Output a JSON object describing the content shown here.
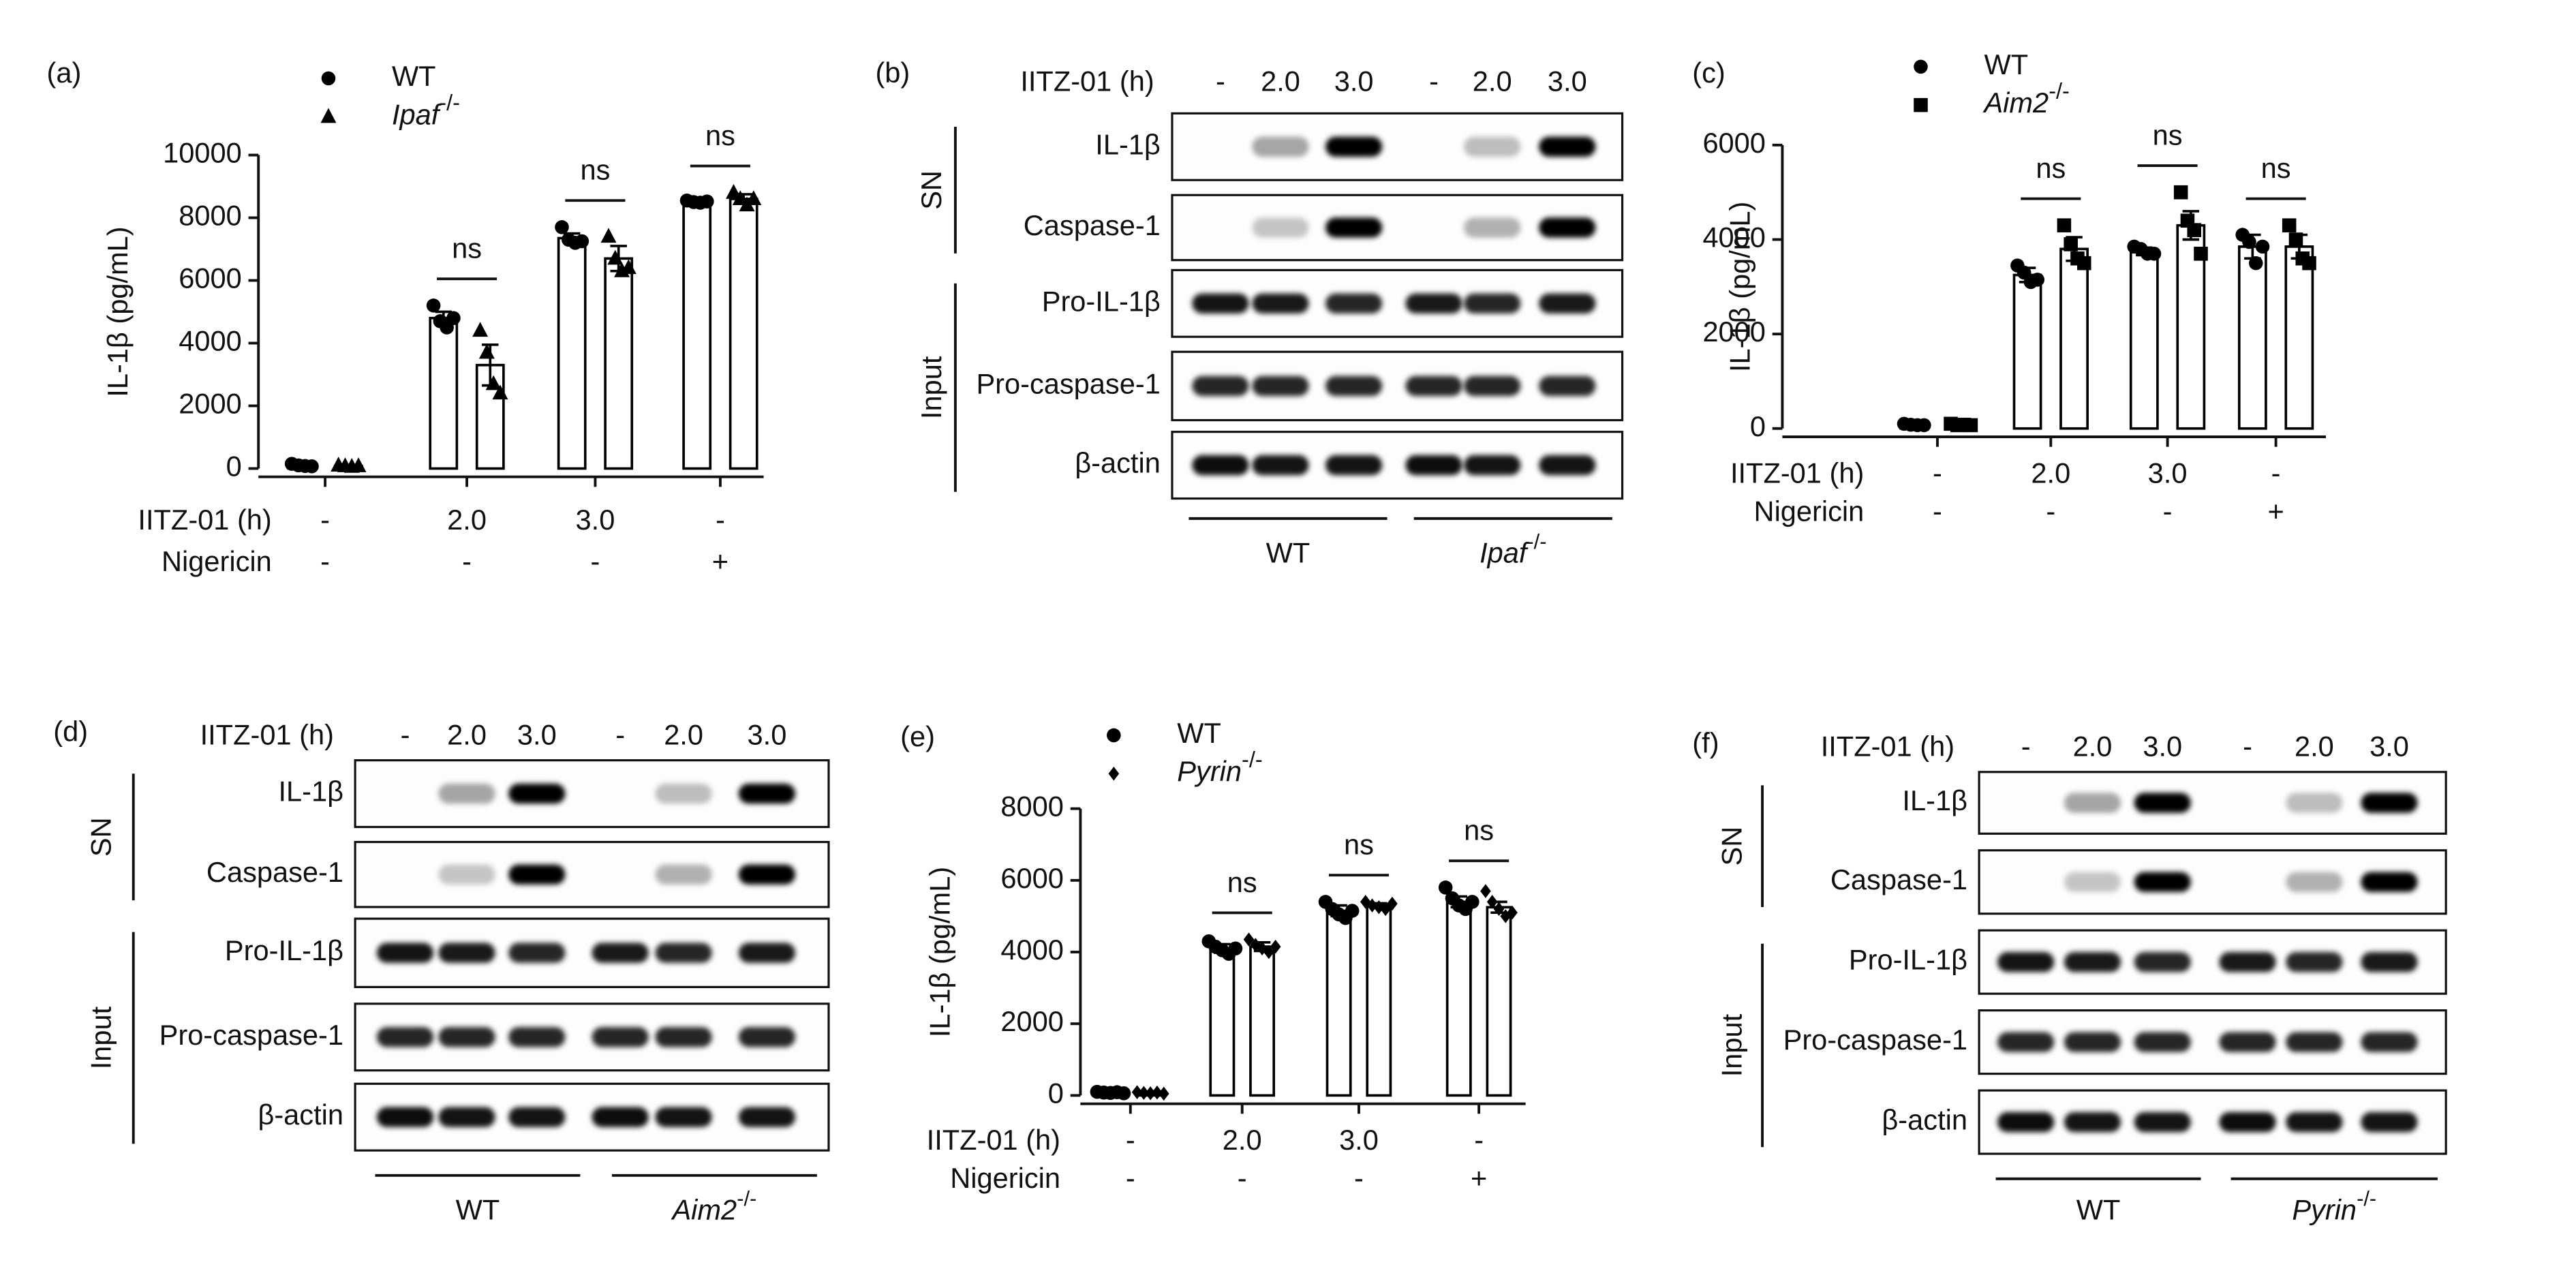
{
  "chart_data": [
    {
      "type": "bar",
      "panel_label": "(a)",
      "ylabel": "IL-1β (pg/mL)",
      "ylim": [
        0,
        10000
      ],
      "yticks": [
        0,
        2000,
        4000,
        6000,
        8000,
        10000
      ],
      "categories": [
        null,
        null,
        null,
        null
      ],
      "conditions": [
        {
          "label": "IITZ-01 (h)",
          "values": [
            "-",
            "2.0",
            "3.0",
            "-"
          ]
        },
        {
          "label": "Nigericin",
          "values": [
            "-",
            "-",
            "-",
            "+"
          ]
        }
      ],
      "significance": [
        null,
        "ns",
        "ns",
        "ns"
      ],
      "series": [
        {
          "name": "WT",
          "marker": "circle",
          "color": "#000000",
          "values": [
            100,
            4800,
            7350,
            8500
          ],
          "errors": [
            20,
            200,
            150,
            30
          ],
          "points": [
            [
              150,
              100,
              80,
              70
            ],
            [
              5200,
              4700,
              4500,
              4800
            ],
            [
              7700,
              7300,
              7200,
              7250
            ],
            [
              8550,
              8500,
              8480,
              8520
            ]
          ]
        },
        {
          "name": "Ipaf",
          "name_superscript": "-/-",
          "marker": "triangle",
          "color": "#000000",
          "values": [
            80,
            3300,
            6700,
            8600
          ],
          "errors": [
            20,
            650,
            400,
            150
          ],
          "points": [
            [
              100,
              80,
              60,
              80
            ],
            [
              4400,
              3700,
              2700,
              2400
            ],
            [
              7400,
              6700,
              6300,
              6400
            ],
            [
              8800,
              8600,
              8400,
              8600
            ]
          ]
        }
      ]
    },
    {
      "type": "bar",
      "panel_label": "(c)",
      "ylabel": "IL-1β (pg/mL)",
      "ylim": [
        0,
        6000
      ],
      "yticks": [
        0,
        2000,
        4000,
        6000
      ],
      "categories": [
        null,
        null,
        null,
        null
      ],
      "conditions": [
        {
          "label": "IITZ-01 (h)",
          "values": [
            "-",
            "2.0",
            "3.0",
            "-"
          ]
        },
        {
          "label": "Nigericin",
          "values": [
            "-",
            "-",
            "-",
            "+"
          ]
        }
      ],
      "significance": [
        null,
        "ns",
        "ns",
        "ns"
      ],
      "series": [
        {
          "name": "WT",
          "marker": "circle",
          "color": "#000000",
          "values": [
            80,
            3250,
            3750,
            3850
          ],
          "errors": [
            20,
            150,
            80,
            250
          ],
          "points": [
            [
              100,
              80,
              70,
              70
            ],
            [
              3450,
              3300,
              3100,
              3150
            ],
            [
              3850,
              3800,
              3700,
              3700
            ],
            [
              4100,
              3950,
              3500,
              3850
            ]
          ]
        },
        {
          "name": "Aim2",
          "name_superscript": "-/-",
          "marker": "square",
          "color": "#000000",
          "values": [
            80,
            3800,
            4300,
            3850
          ],
          "errors": [
            20,
            250,
            300,
            250
          ],
          "points": [
            [
              100,
              70,
              80,
              70
            ],
            [
              4300,
              3900,
              3600,
              3500
            ],
            [
              5000,
              4400,
              4200,
              3700
            ],
            [
              4300,
              4000,
              3600,
              3500
            ]
          ]
        }
      ]
    },
    {
      "type": "bar",
      "panel_label": "(e)",
      "ylabel": "IL-1β (pg/mL)",
      "ylim": [
        0,
        8000
      ],
      "yticks": [
        0,
        2000,
        4000,
        6000,
        8000
      ],
      "categories": [
        null,
        null,
        null,
        null
      ],
      "conditions": [
        {
          "label": "IITZ-01 (h)",
          "values": [
            "-",
            "2.0",
            "3.0",
            "-"
          ]
        },
        {
          "label": "Nigericin",
          "values": [
            "-",
            "-",
            "-",
            "+"
          ]
        }
      ],
      "significance": [
        null,
        "ns",
        "ns",
        "ns"
      ],
      "series": [
        {
          "name": "WT",
          "marker": "circle",
          "color": "#000000",
          "values": [
            80,
            4100,
            5150,
            5400
          ],
          "errors": [
            20,
            120,
            150,
            150
          ],
          "points": [
            [
              100,
              80,
              70,
              90,
              60
            ],
            [
              4300,
              4150,
              4050,
              3950,
              4100
            ],
            [
              5400,
              5200,
              5050,
              4950,
              5150
            ],
            [
              5800,
              5500,
              5300,
              5200,
              5400
            ]
          ]
        },
        {
          "name": "Pyrin",
          "name_superscript": "-/-",
          "marker": "diamond",
          "color": "#000000",
          "values": [
            70,
            4150,
            5300,
            5250
          ],
          "errors": [
            20,
            120,
            60,
            150
          ],
          "points": [
            [
              90,
              70,
              60,
              80,
              50
            ],
            [
              4350,
              4200,
              4100,
              4000,
              4150
            ],
            [
              5400,
              5300,
              5250,
              5200,
              5350
            ],
            [
              5700,
              5400,
              5200,
              5000,
              5100
            ]
          ]
        }
      ]
    }
  ],
  "blots": [
    {
      "panel_label": "(b)",
      "treatment_label": "IITZ-01 (h)",
      "lanes": [
        "-",
        "2.0",
        "3.0",
        "-",
        "2.0",
        "3.0"
      ],
      "groups": [
        {
          "label": "SN",
          "rows": [
            "IL-1β",
            "Caspase-1"
          ]
        },
        {
          "label": "Input",
          "rows": [
            "Pro-IL-1β",
            "Pro-caspase-1",
            "β-actin"
          ]
        }
      ],
      "genotypes": [
        {
          "name": "WT"
        },
        {
          "name": "Ipaf",
          "superscript": "-/-"
        }
      ]
    },
    {
      "panel_label": "(d)",
      "treatment_label": "IITZ-01 (h)",
      "lanes": [
        "-",
        "2.0",
        "3.0",
        "-",
        "2.0",
        "3.0"
      ],
      "groups": [
        {
          "label": "SN",
          "rows": [
            "IL-1β",
            "Caspase-1"
          ]
        },
        {
          "label": "Input",
          "rows": [
            "Pro-IL-1β",
            "Pro-caspase-1",
            "β-actin"
          ]
        }
      ],
      "genotypes": [
        {
          "name": "WT"
        },
        {
          "name": "Aim2",
          "superscript": "-/-"
        }
      ]
    },
    {
      "panel_label": "(f)",
      "treatment_label": "IITZ-01 (h)",
      "lanes": [
        "-",
        "2.0",
        "3.0",
        "-",
        "2.0",
        "3.0"
      ],
      "groups": [
        {
          "label": "SN",
          "rows": [
            "IL-1β",
            "Caspase-1"
          ]
        },
        {
          "label": "Input",
          "rows": [
            "Pro-IL-1β",
            "Pro-caspase-1",
            "β-actin"
          ]
        }
      ],
      "genotypes": [
        {
          "name": "WT"
        },
        {
          "name": "Pyrin",
          "superscript": "-/-"
        }
      ]
    }
  ]
}
